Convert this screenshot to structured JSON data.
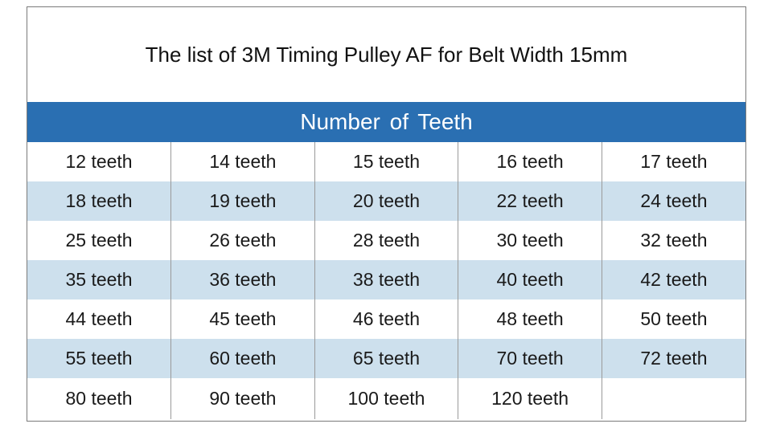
{
  "title": "The list of 3M Timing Pulley AF for Belt Width 15mm",
  "header": "Number of Teeth",
  "rows": [
    [
      "12 teeth",
      "14 teeth",
      "15 teeth",
      "16 teeth",
      "17 teeth"
    ],
    [
      "18 teeth",
      "19 teeth",
      "20 teeth",
      "22 teeth",
      "24 teeth"
    ],
    [
      "25 teeth",
      "26 teeth",
      "28 teeth",
      "30 teeth",
      "32 teeth"
    ],
    [
      "35 teeth",
      "36 teeth",
      "38 teeth",
      "40 teeth",
      "42 teeth"
    ],
    [
      "44 teeth",
      "45 teeth",
      "46 teeth",
      "48 teeth",
      "50 teeth"
    ],
    [
      "55 teeth",
      "60 teeth",
      "65 teeth",
      "70 teeth",
      "72 teeth"
    ],
    [
      "80 teeth",
      "90 teeth",
      "100 teeth",
      "120 teeth",
      ""
    ]
  ],
  "colors": {
    "header_bg": "#2a6fb2",
    "row_shade": "#cde0ed",
    "border": "#7a7a7a"
  }
}
